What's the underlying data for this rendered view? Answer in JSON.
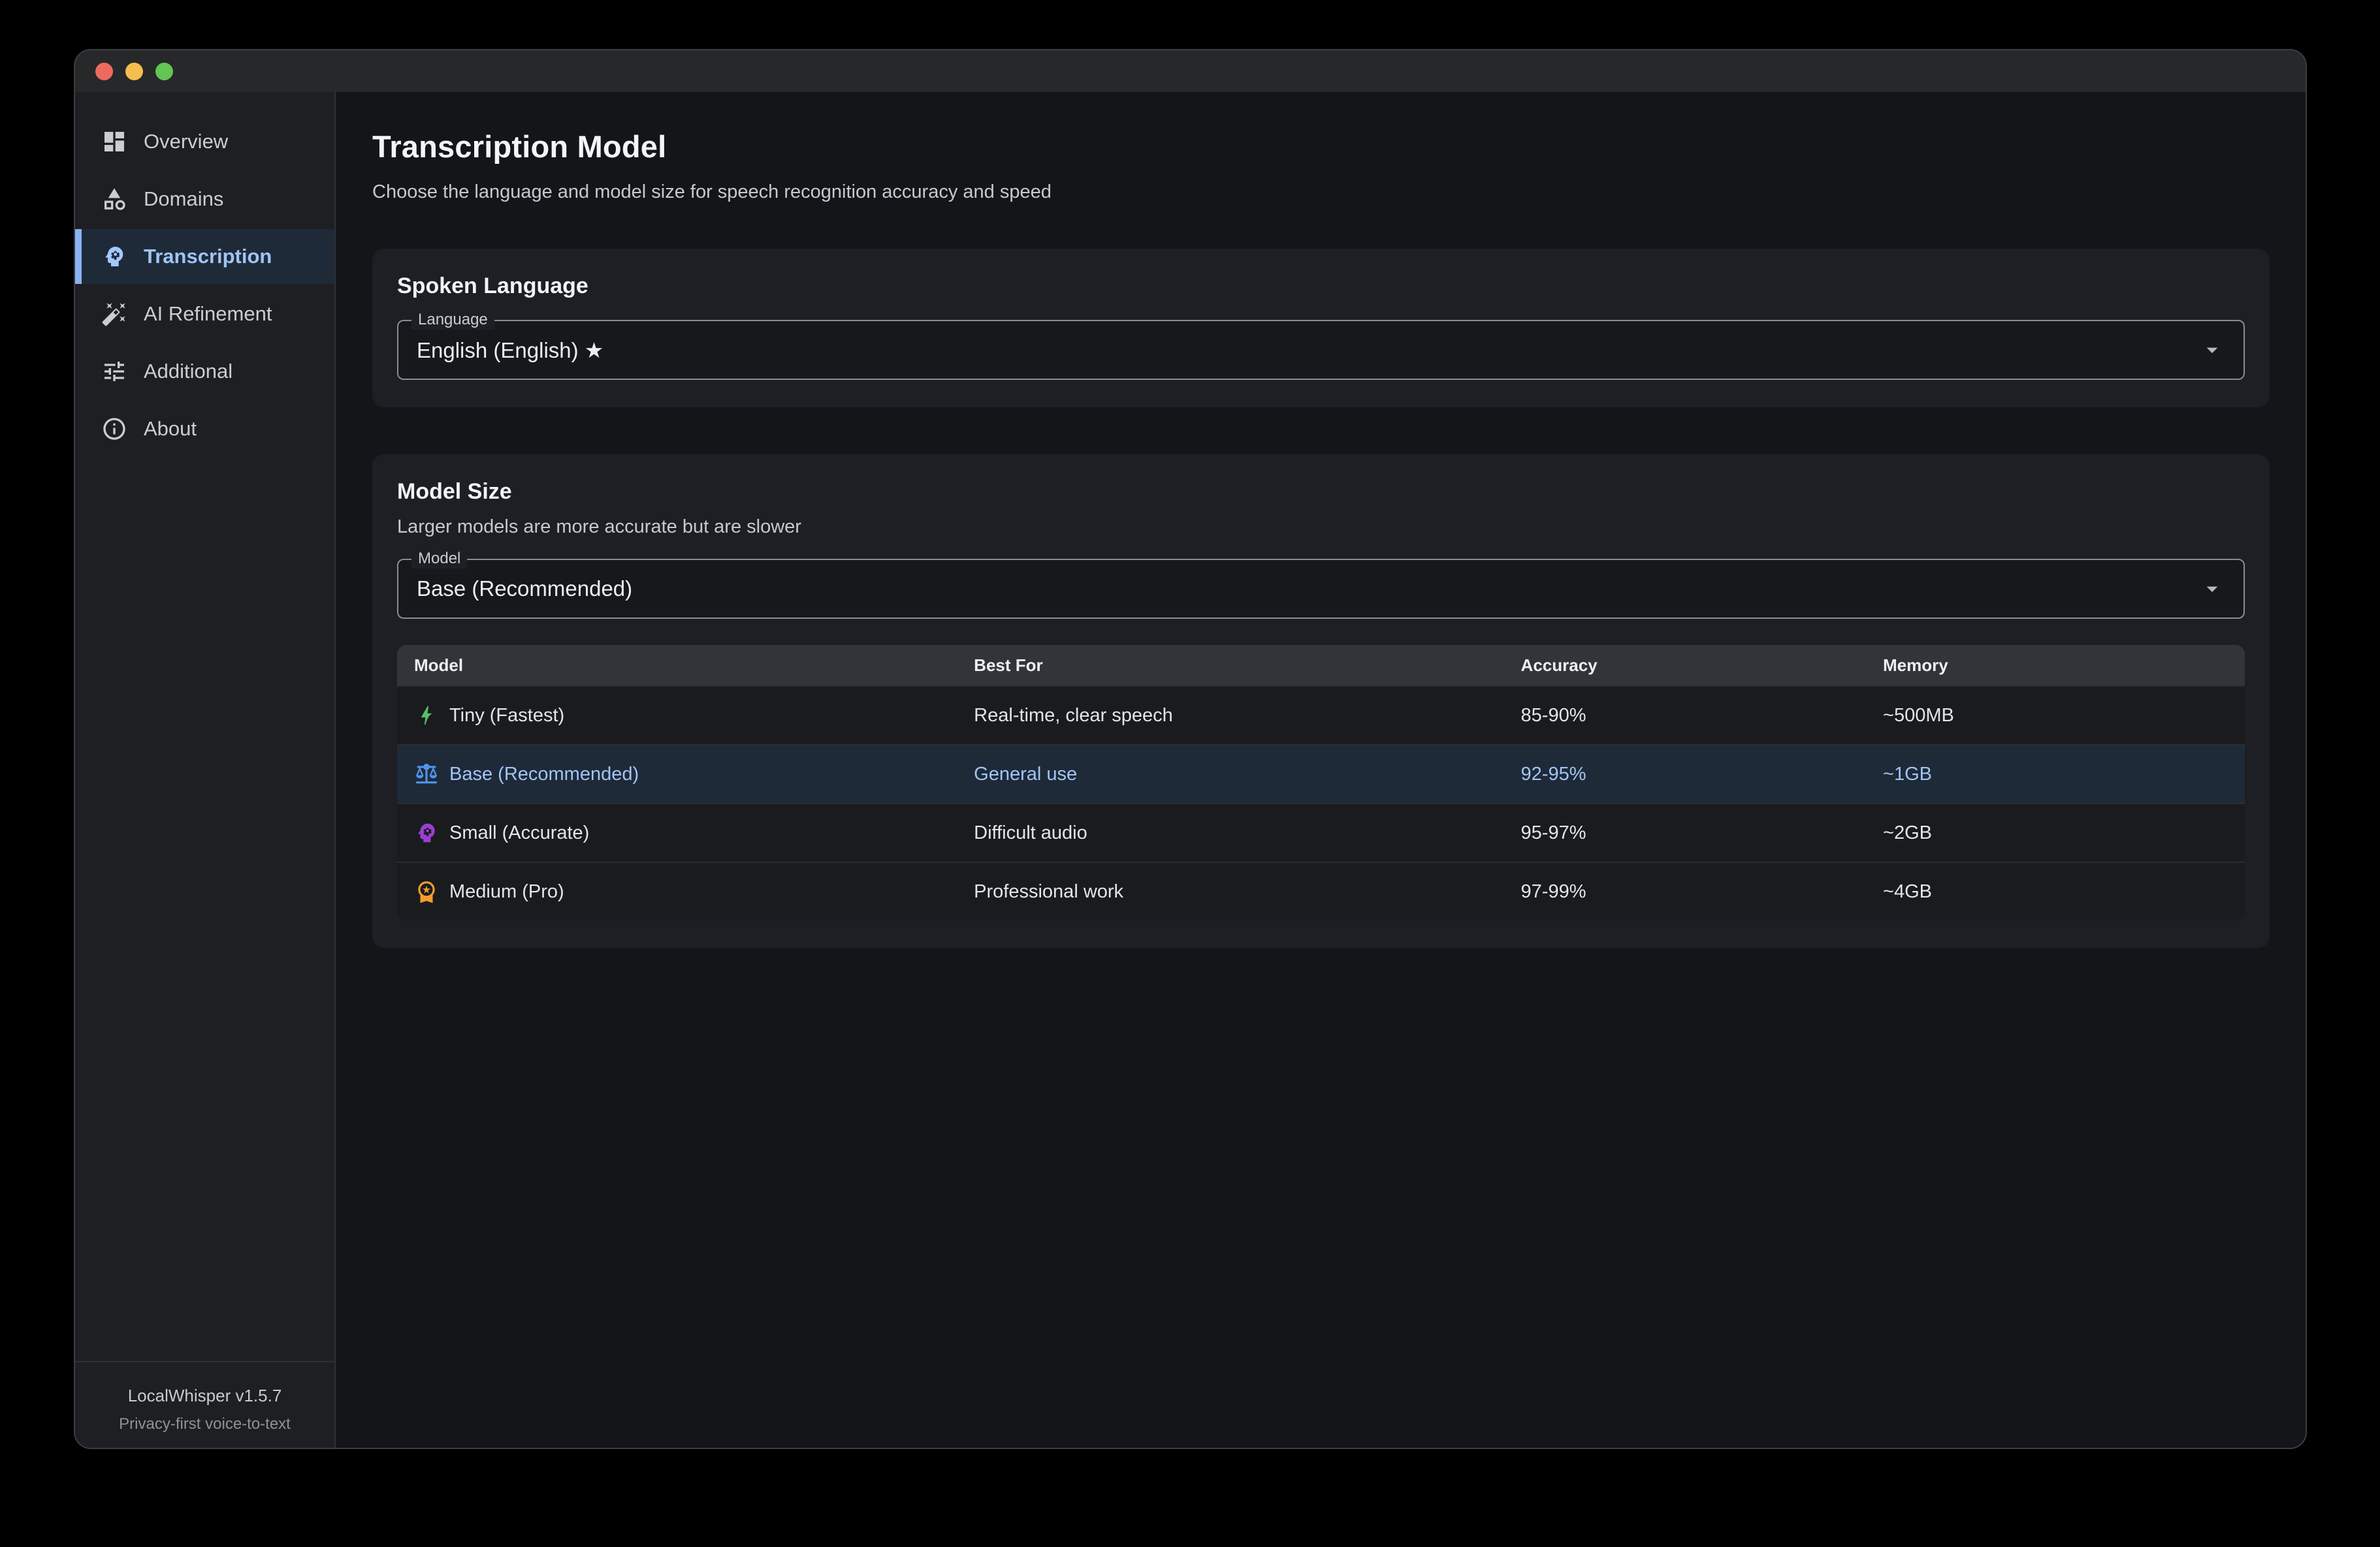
{
  "window": {
    "traffic_lights": [
      {
        "name": "close",
        "color": "#ee6a5e"
      },
      {
        "name": "minimize",
        "color": "#f5bf4e"
      },
      {
        "name": "zoom",
        "color": "#62c554"
      }
    ]
  },
  "sidebar": {
    "items": [
      {
        "name": "overview",
        "label": "Overview",
        "icon": "dashboard-icon",
        "active": false
      },
      {
        "name": "domains",
        "label": "Domains",
        "icon": "shapes-icon",
        "active": false
      },
      {
        "name": "transcription",
        "label": "Transcription",
        "icon": "psychology-icon",
        "active": true
      },
      {
        "name": "ai-refinement",
        "label": "AI Refinement",
        "icon": "magic-wand-icon",
        "active": false
      },
      {
        "name": "additional",
        "label": "Additional",
        "icon": "tune-icon",
        "active": false
      },
      {
        "name": "about",
        "label": "About",
        "icon": "info-icon",
        "active": false
      }
    ],
    "footer": {
      "app_version": "LocalWhisper v1.5.7",
      "tagline": "Privacy-first voice-to-text"
    }
  },
  "header": {
    "title": "Transcription Model",
    "subtitle": "Choose the language and model size for speech recognition accuracy and speed"
  },
  "language_card": {
    "heading": "Spoken Language",
    "field_label": "Language",
    "value": "English (English) ★"
  },
  "model_card": {
    "heading": "Model Size",
    "subtitle": "Larger models are more accurate but are slower",
    "field_label": "Model",
    "value": "Base (Recommended)",
    "table": {
      "columns": [
        "Model",
        "Best For",
        "Accuracy",
        "Memory"
      ],
      "rows": [
        {
          "model": "Tiny (Fastest)",
          "icon": "bolt-icon",
          "icon_color": "#55c065",
          "best_for": "Real-time, clear speech",
          "accuracy": "85-90%",
          "memory": "~500MB",
          "selected": false
        },
        {
          "model": "Base (Recommended)",
          "icon": "balance-icon",
          "icon_color": "#4f94ee",
          "best_for": "General use",
          "accuracy": "92-95%",
          "memory": "~1GB",
          "selected": true
        },
        {
          "model": "Small (Accurate)",
          "icon": "psychology-icon",
          "icon_color": "#9a3fd0",
          "best_for": "Difficult audio",
          "accuracy": "95-97%",
          "memory": "~2GB",
          "selected": false
        },
        {
          "model": "Medium (Pro)",
          "icon": "medal-icon",
          "icon_color": "#f09d2c",
          "best_for": "Professional work",
          "accuracy": "97-99%",
          "memory": "~4GB",
          "selected": false
        }
      ]
    }
  },
  "colors": {
    "accent_blue": "#8ab3f2",
    "active_text_blue": "#9fc4f8",
    "selected_row_bg": "#1e2a38",
    "window_bg": "#141519",
    "sidebar_bg": "#1d1f22",
    "card_bg": "#1d1f24",
    "table_header_bg": "#323439"
  }
}
